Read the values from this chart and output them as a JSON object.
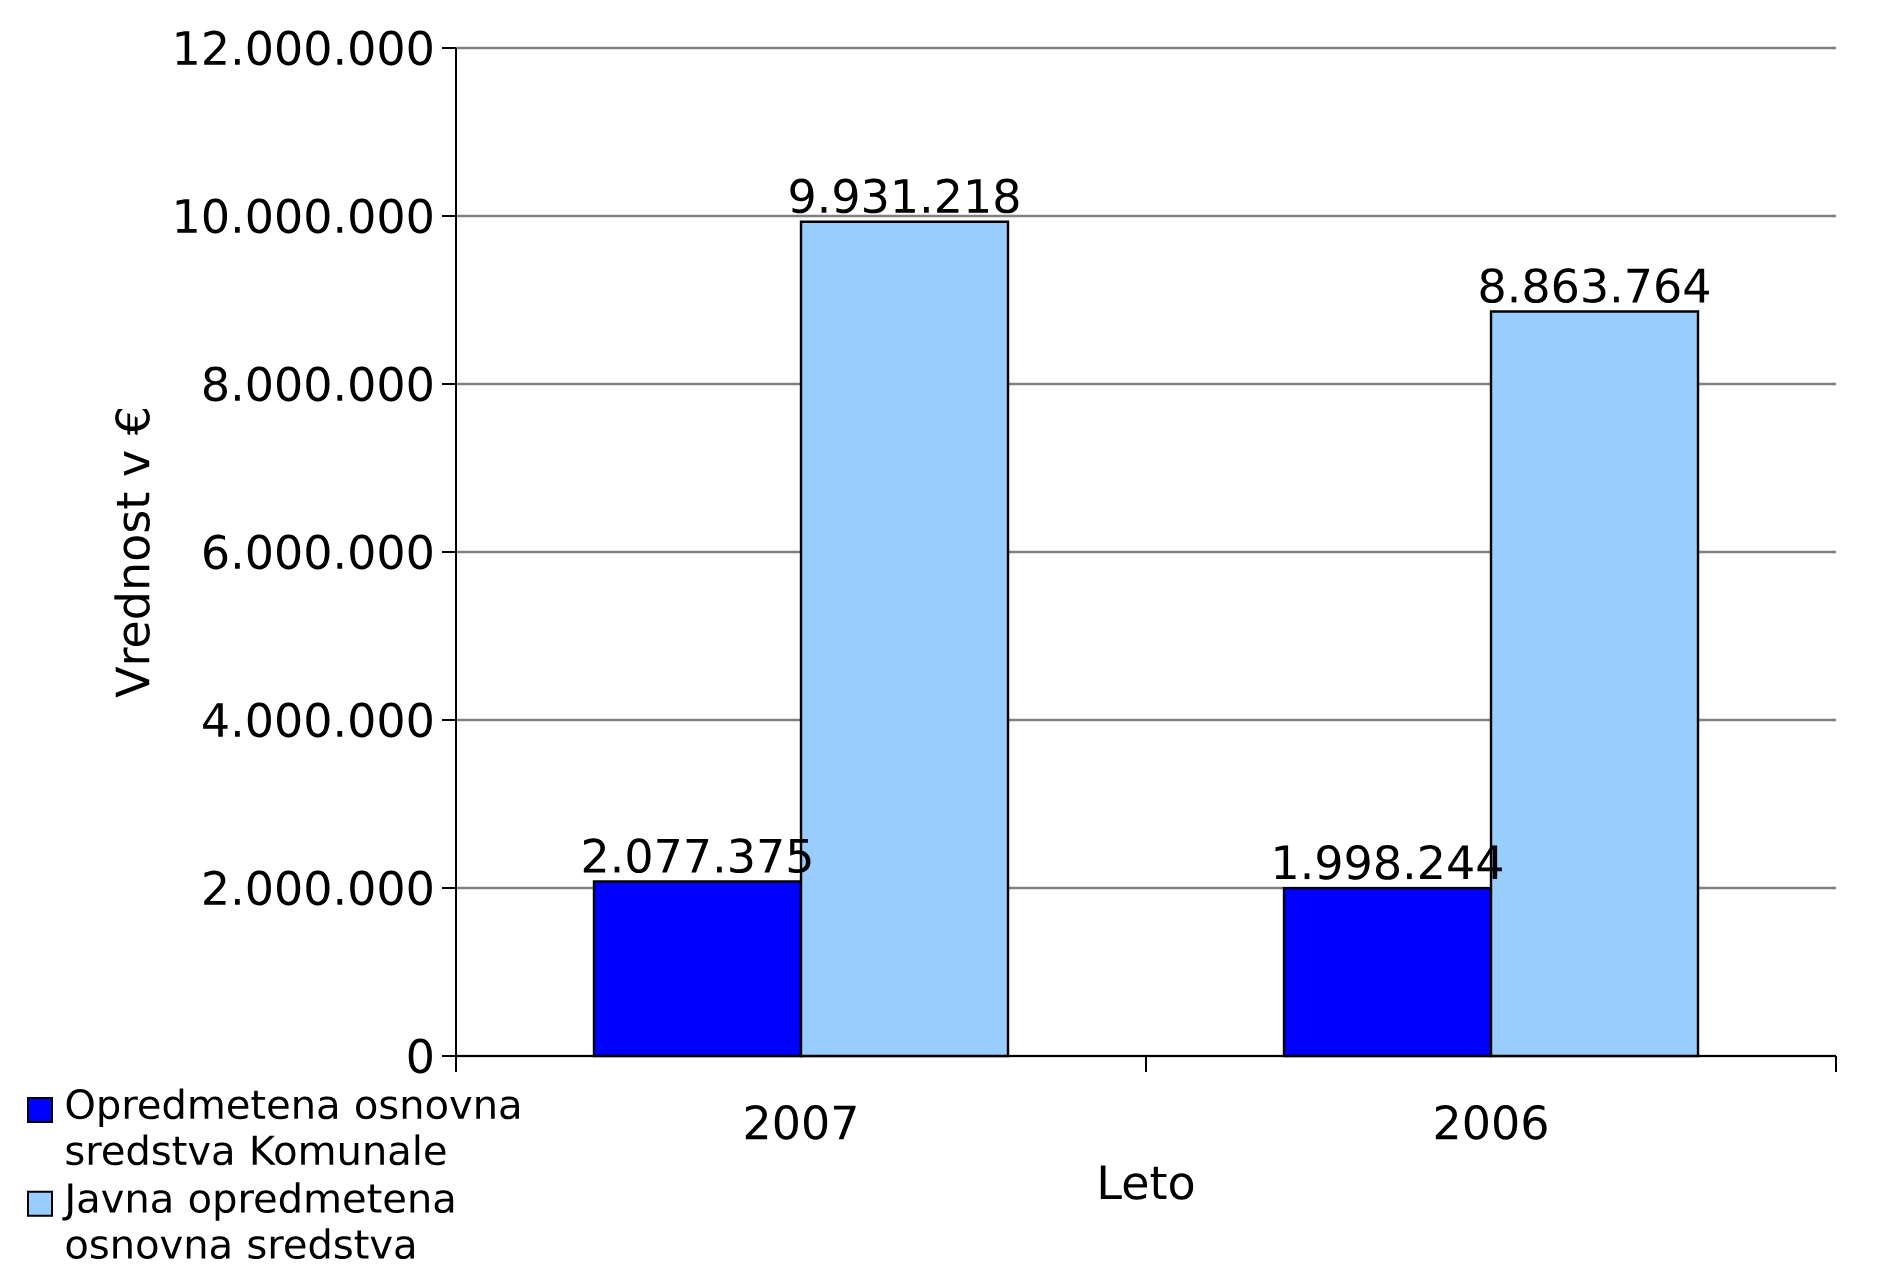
{
  "chart_data": {
    "type": "bar",
    "categories": [
      "2007",
      "2006"
    ],
    "series": [
      {
        "name": "Opredmetena osnovna sredstva Komunale",
        "color": "#0000ff",
        "values": [
          2077375,
          1998244
        ],
        "value_labels": [
          "2.077.375",
          "1.998.244"
        ]
      },
      {
        "name": "Javna opredmetena osnovna sredstva",
        "color": "#99ccff",
        "values": [
          9931218,
          8863764
        ],
        "value_labels": [
          "9.931.218",
          "8.863.764"
        ]
      }
    ],
    "xlabel": "Leto",
    "ylabel": "Vrednost v €",
    "ylim": [
      0,
      12000000
    ],
    "yticks": [
      0,
      {
        "value": 2000000,
        "label": "2.000.000"
      },
      {
        "value": 4000000,
        "label": "4.000.000"
      },
      {
        "value": 6000000,
        "label": "6.000.000"
      },
      {
        "value": 8000000,
        "label": "8.000.000"
      },
      {
        "value": 10000000,
        "label": "10.000.000"
      },
      {
        "value": 12000000,
        "label": "12.000.000"
      }
    ],
    "grid": "y",
    "legend": "bottom left"
  }
}
